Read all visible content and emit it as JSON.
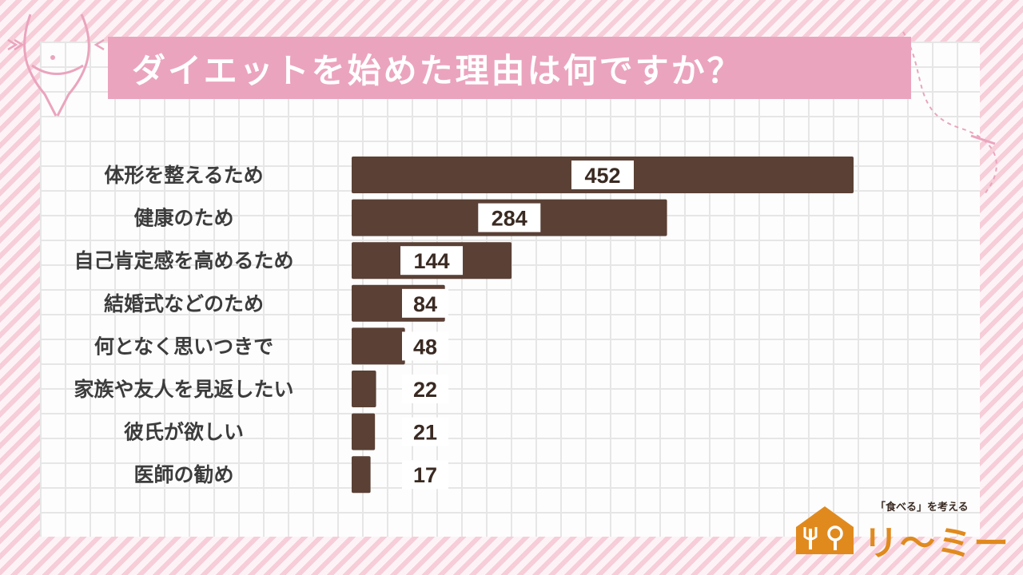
{
  "title": "ダイエットを始めた理由は何ですか？",
  "chart_data": {
    "type": "bar",
    "orientation": "horizontal",
    "title": "ダイエットを始めた理由は何ですか？",
    "categories": [
      "体形を整えるため",
      "健康のため",
      "自己肯定感を高めるため",
      "結婚式などのため",
      "何となく思いつきで",
      "家族や友人を見返したい",
      "彼氏が欲しい",
      "医師の勧め"
    ],
    "values": [
      452,
      284,
      144,
      84,
      48,
      22,
      21,
      17
    ],
    "data_labels": [
      "452",
      "284",
      "144",
      "84",
      "48",
      "22",
      "21",
      "17"
    ],
    "bar_color": "#5a4035",
    "grid": false,
    "xlabel": "",
    "ylabel": ""
  },
  "brand": {
    "tagline": "「食べる」を考える",
    "name": "リ〜ミー",
    "color": "#e08a1e"
  },
  "colors": {
    "title_band": "#eba4be",
    "background_stripe": "#f6cdd8"
  }
}
